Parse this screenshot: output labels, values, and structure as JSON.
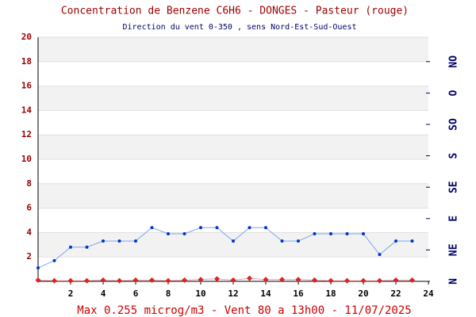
{
  "chart_data": {
    "type": "line",
    "title": "Concentration de Benzene C6H6  -   DONGES - Pasteur (rouge)",
    "subtitle": "Direction du vent 0-350 , sens Nord-Est-Sud-Ouest",
    "footer": "Max 0.255 microg/m3 - Vent 80  a 13h00 - 11/07/2025",
    "x": [
      0,
      1,
      2,
      3,
      4,
      5,
      6,
      7,
      8,
      9,
      10,
      11,
      12,
      13,
      14,
      15,
      16,
      17,
      18,
      19,
      20,
      21,
      22,
      23
    ],
    "series": [
      {
        "color": "#0033cc",
        "line_color": "#7fa6ee",
        "marker": "circle",
        "values": [
          1.1,
          1.7,
          2.8,
          2.8,
          3.3,
          3.3,
          3.3,
          4.4,
          3.9,
          3.9,
          4.4,
          4.4,
          3.3,
          4.4,
          4.4,
          3.3,
          3.3,
          3.9,
          3.9,
          3.9,
          3.9,
          2.2,
          3.3,
          3.3
        ]
      },
      {
        "color": "#dd2222",
        "line_color": "#f0a0a0",
        "marker": "diamond",
        "values": [
          0.1,
          0.05,
          0.05,
          0.05,
          0.1,
          0.05,
          0.1,
          0.1,
          0.05,
          0.1,
          0.15,
          0.2,
          0.1,
          0.255,
          0.15,
          0.15,
          0.15,
          0.1,
          0.05,
          0.05,
          0.05,
          0.05,
          0.1,
          0.1
        ]
      }
    ],
    "xlim": [
      0,
      24
    ],
    "xticks": [
      2,
      4,
      6,
      8,
      10,
      12,
      14,
      16,
      18,
      20,
      22,
      24
    ],
    "ylim": [
      0,
      20
    ],
    "yticks": [
      2,
      4,
      6,
      8,
      10,
      12,
      14,
      16,
      18,
      20
    ],
    "y2lim": [
      0,
      350
    ],
    "y2ticks": [
      {
        "value": 0,
        "label": "N"
      },
      {
        "value": 45,
        "label": "NE"
      },
      {
        "value": 90,
        "label": "E"
      },
      {
        "value": 135,
        "label": "SE"
      },
      {
        "value": 180,
        "label": "S"
      },
      {
        "value": 225,
        "label": "SO"
      },
      {
        "value": 270,
        "label": "O"
      },
      {
        "value": 315,
        "label": "NO"
      }
    ],
    "bands": true
  }
}
